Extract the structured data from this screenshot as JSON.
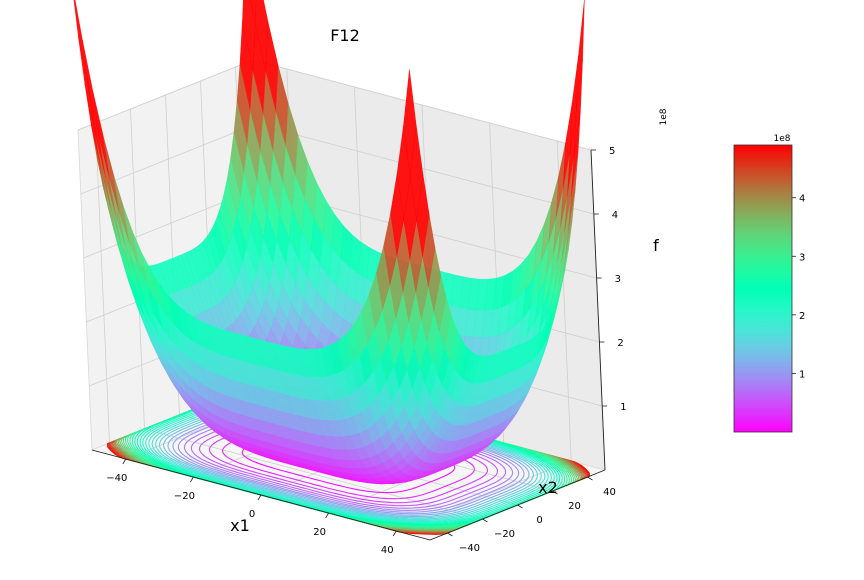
{
  "chart_data": {
    "type": "surface",
    "title": "F12",
    "xlabel": "x1",
    "ylabel": "x2",
    "zlabel": "f",
    "xlim": [
      -50,
      50
    ],
    "ylim": [
      -50,
      50
    ],
    "zlim": [
      0,
      5
    ],
    "x_ticks": [
      -40,
      -20,
      0,
      20,
      40
    ],
    "y_ticks": [
      -40,
      -20,
      0,
      20,
      40
    ],
    "z_ticks": [
      1,
      2,
      3,
      4,
      5
    ],
    "z_multiplier": "1e8",
    "z_max": 4.9,
    "colormap": "rainbow",
    "contour_floor": true,
    "grid": true,
    "colorbar": {
      "ticks": [
        1,
        2,
        3,
        4
      ],
      "multiplier": "1e8",
      "min": 0,
      "max": 4.9,
      "placement": "right"
    }
  }
}
